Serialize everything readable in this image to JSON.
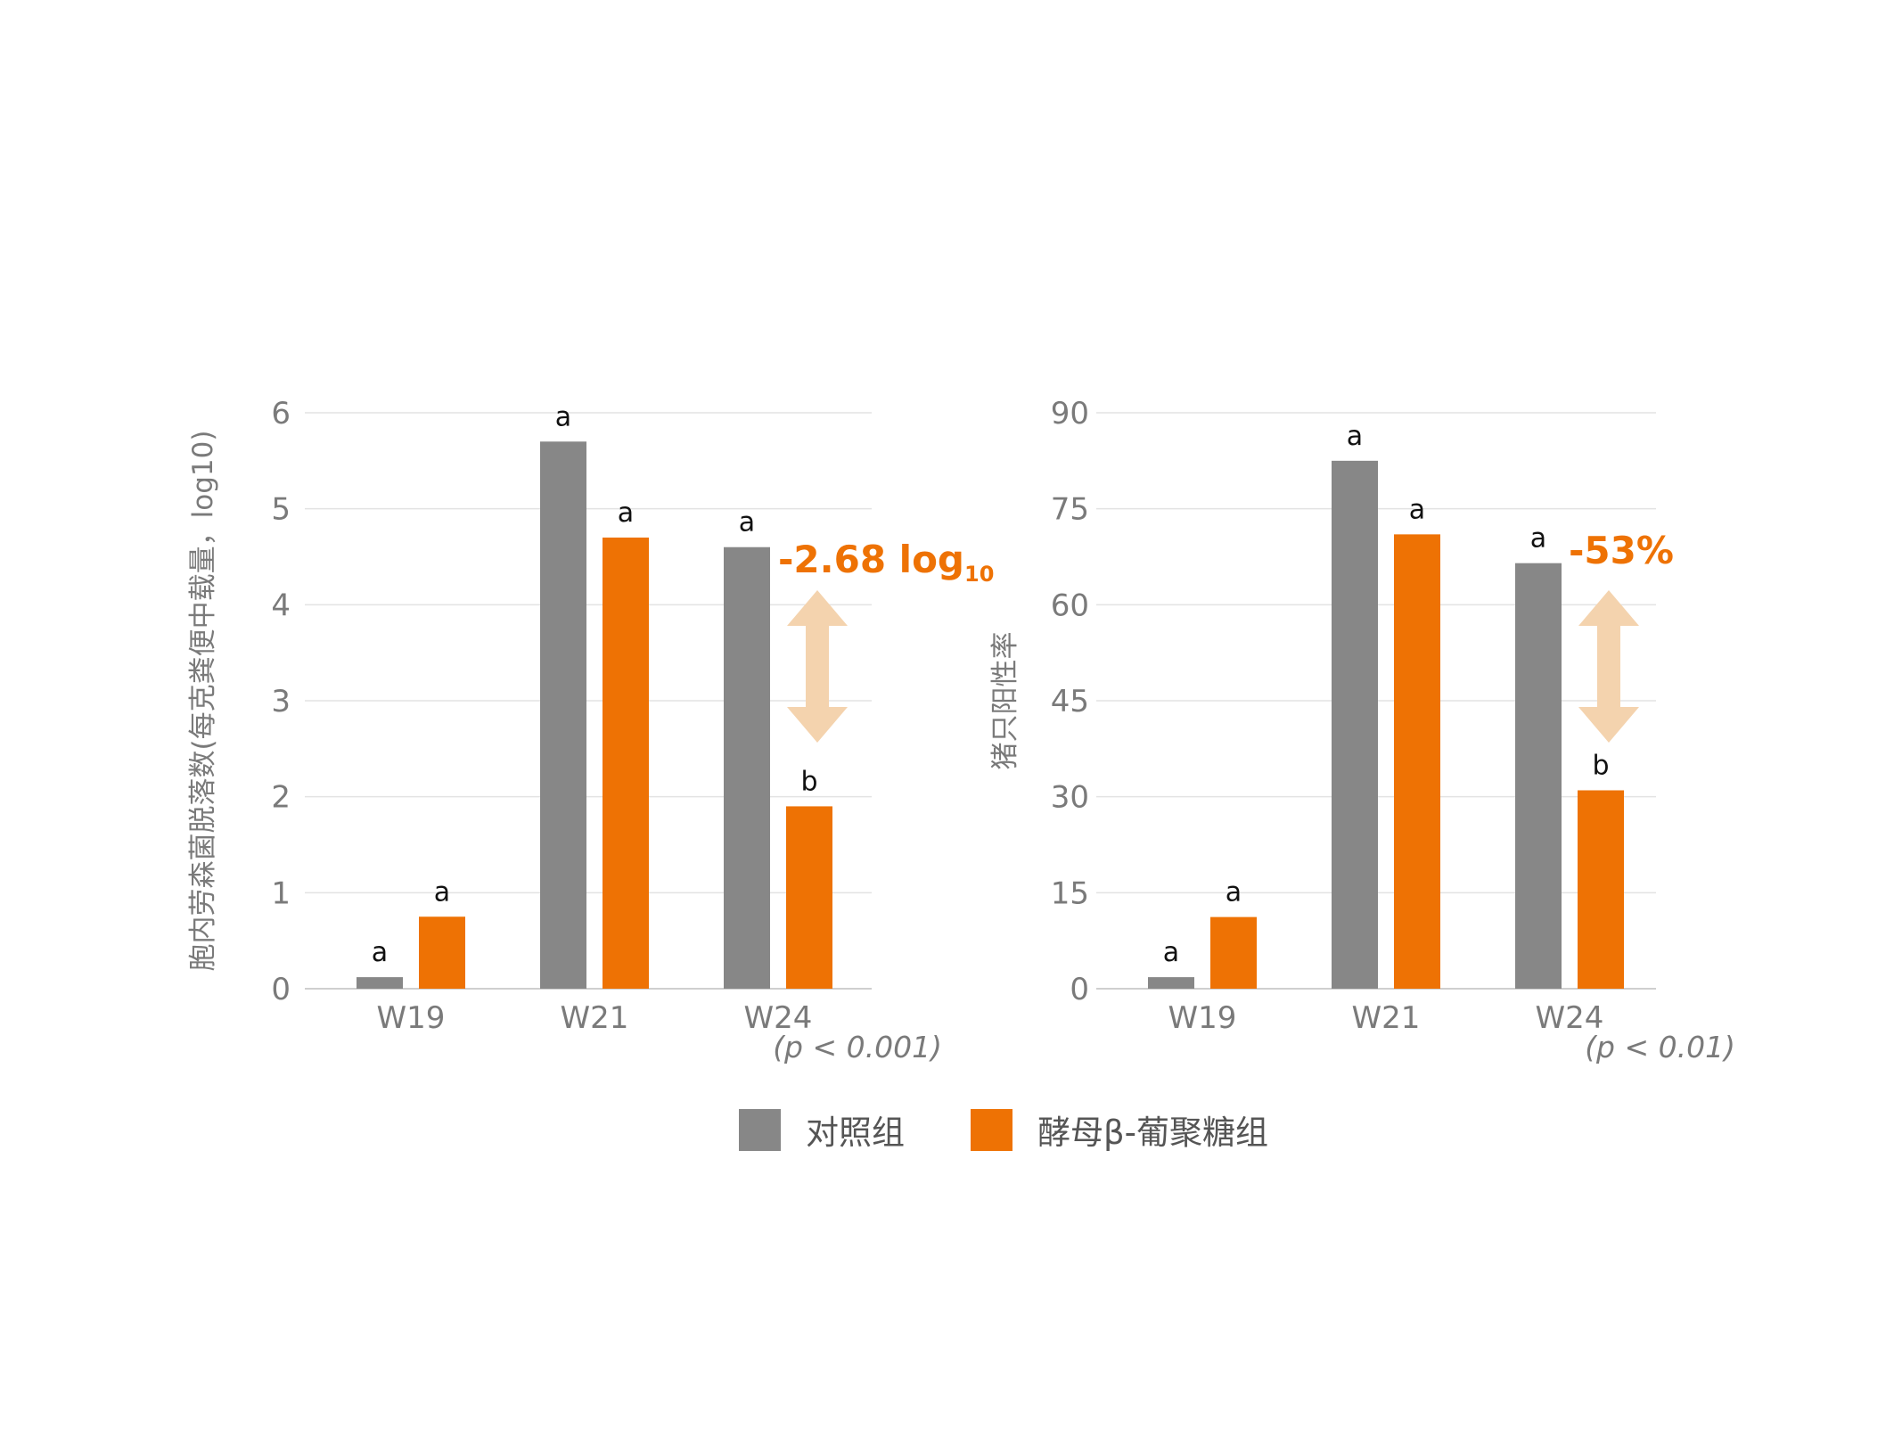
{
  "colors": {
    "control": "#878787",
    "treatment": "#ee7204",
    "arrow": "#f4d3ae",
    "grid": "#e3e3e3",
    "axis_text": "#7a7a7a",
    "sig_text": "#111111"
  },
  "legend": [
    {
      "label": "对照组",
      "color": "#878787"
    },
    {
      "label": "酵母β-葡聚糖组",
      "color": "#ee7204"
    }
  ],
  "chart_data": [
    {
      "type": "bar",
      "ylabel": "胞内劳森菌脱落数(每克粪便中载量，log10)",
      "ylim": [
        0,
        6
      ],
      "yticks": [
        "0",
        "1",
        "2",
        "3",
        "4",
        "5",
        "6"
      ],
      "grid": true,
      "categories": [
        "W19",
        "W21",
        "W24"
      ],
      "series": [
        {
          "key": "control",
          "values": [
            0.12,
            5.7,
            4.6
          ],
          "significance": [
            "a",
            "a",
            "a"
          ]
        },
        {
          "key": "treatment",
          "values": [
            0.75,
            4.7,
            1.9
          ],
          "significance": [
            "a",
            "a",
            "b"
          ]
        }
      ],
      "annotation": {
        "text": "-2.68 log",
        "subscript": "10",
        "category": "W24"
      },
      "pvalue": "(p < 0.001)"
    },
    {
      "type": "bar",
      "ylabel": "猪只阳性率",
      "ylim": [
        0,
        90
      ],
      "yticks": [
        "0",
        "15",
        "30",
        "45",
        "60",
        "75",
        "90"
      ],
      "grid": true,
      "categories": [
        "W19",
        "W21",
        "W24"
      ],
      "series": [
        {
          "key": "control",
          "values": [
            1.8,
            82.5,
            66.5
          ],
          "significance": [
            "a",
            "a",
            "a"
          ]
        },
        {
          "key": "treatment",
          "values": [
            11.2,
            71.0,
            31.0
          ],
          "significance": [
            "a",
            "a",
            "b"
          ]
        }
      ],
      "annotation": {
        "text": "-53%",
        "subscript": "",
        "category": "W24"
      },
      "pvalue": "(p < 0.01)"
    }
  ]
}
